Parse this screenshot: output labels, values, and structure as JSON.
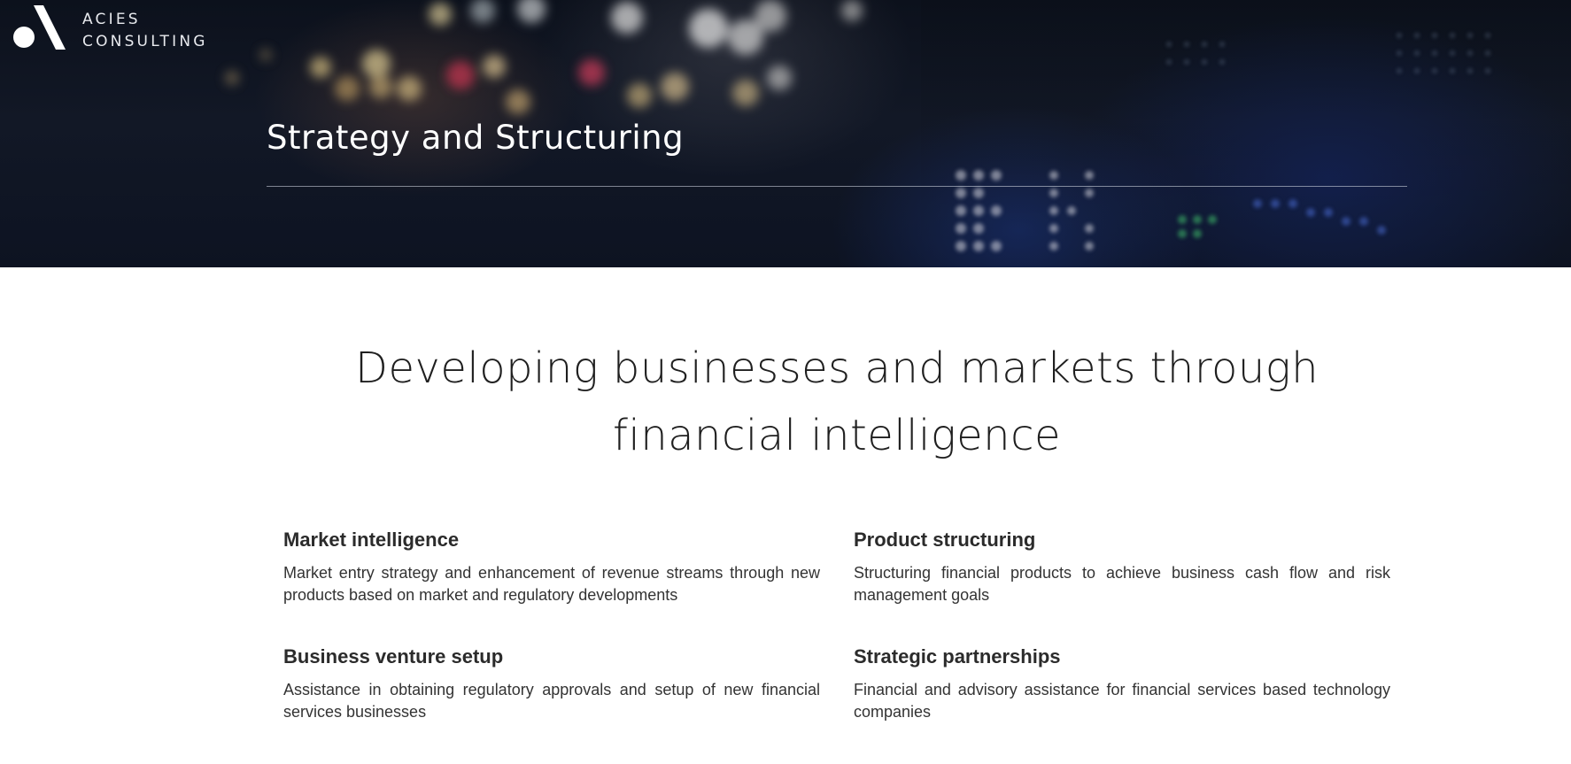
{
  "brand": {
    "line1": "ACIES",
    "line2": "CONSULTING"
  },
  "hero": {
    "title": "Strategy and Structuring"
  },
  "headline": {
    "line1": "Developing businesses and markets through",
    "line2": "financial intelligence"
  },
  "services": [
    {
      "title": "Market intelligence",
      "description": "Market entry strategy and enhancement of revenue streams through new products based on market and regulatory developments"
    },
    {
      "title": "Product structuring",
      "description": "Structuring financial products to achieve business cash flow and risk management goals"
    },
    {
      "title": "Business venture setup",
      "description": "Assistance in obtaining regulatory approvals and setup of new financial services businesses"
    },
    {
      "title": "Strategic partnerships",
      "description": "Financial and advisory assistance for financial services based technology companies"
    }
  ],
  "colors": {
    "hero_background": "#0c111c",
    "text_dark": "#2b2b2b",
    "text_white": "#ffffff"
  }
}
